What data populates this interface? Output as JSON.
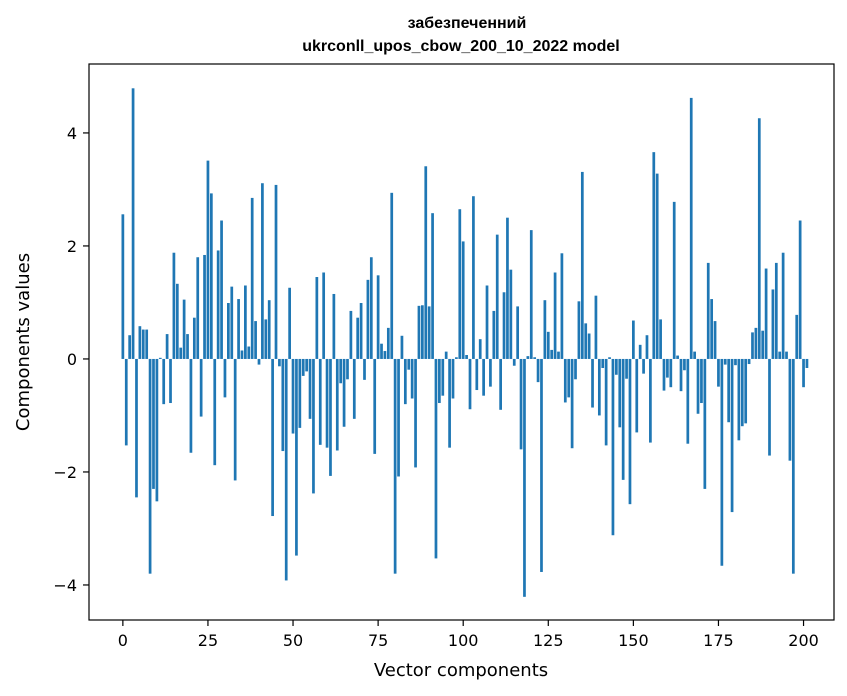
{
  "chart_data": {
    "type": "bar",
    "title_line1": "забезпеченний",
    "title_line2": "ukrconll_upos_cbow_200_10_2022 model",
    "xlabel": "Vector components",
    "ylabel": "Components values",
    "xlim": [
      -9.95,
      208.95
    ],
    "ylim": [
      -4.62,
      5.22
    ],
    "xticks": [
      0,
      25,
      50,
      75,
      100,
      125,
      150,
      175,
      200
    ],
    "yticks": [
      -4,
      -2,
      0,
      2,
      4
    ],
    "ytick_labels": [
      "−4",
      "−2",
      "0",
      "2",
      "4"
    ],
    "grid": false,
    "bar_color": "#1f77b4",
    "values": [
      2.56,
      -1.53,
      0.42,
      4.79,
      -2.45,
      0.58,
      0.52,
      0.52,
      -3.8,
      -2.3,
      -2.52,
      0.02,
      -0.8,
      0.44,
      -0.78,
      1.88,
      1.33,
      0.2,
      1.05,
      0.44,
      -1.66,
      0.73,
      1.8,
      -1.02,
      1.84,
      3.51,
      2.93,
      -1.88,
      1.92,
      2.45,
      -0.68,
      0.99,
      1.28,
      -2.15,
      1.06,
      0.15,
      1.3,
      0.22,
      2.85,
      0.67,
      -0.1,
      3.11,
      0.7,
      1.04,
      -2.78,
      3.08,
      -0.13,
      -1.63,
      -3.92,
      1.26,
      -1.32,
      -3.48,
      -1.22,
      -0.3,
      -0.22,
      -1.06,
      -2.38,
      1.45,
      -1.52,
      1.53,
      -1.57,
      -2.07,
      1.15,
      -1.62,
      -0.43,
      -1.2,
      -0.36,
      0.85,
      -1.06,
      0.73,
      0.99,
      -0.37,
      1.4,
      1.8,
      -1.68,
      1.48,
      0.27,
      0.14,
      0.55,
      2.94,
      -3.8,
      -2.08,
      0.41,
      -0.8,
      -0.19,
      -0.7,
      -1.92,
      0.94,
      0.95,
      3.41,
      0.93,
      2.58,
      -3.53,
      -0.78,
      -0.65,
      0.13,
      -1.57,
      -0.7,
      0.03,
      2.65,
      2.08,
      0.07,
      -0.89,
      2.88,
      -0.55,
      0.35,
      -0.65,
      1.3,
      -0.49,
      0.85,
      2.2,
      -0.9,
      1.18,
      2.5,
      1.58,
      -0.12,
      0.93,
      -1.6,
      -4.21,
      0.05,
      2.28,
      0.03,
      -0.41,
      -3.77,
      1.04,
      0.48,
      0.16,
      1.53,
      0.13,
      1.87,
      -0.77,
      -0.68,
      -1.58,
      -0.36,
      1.02,
      3.31,
      0.63,
      0.45,
      -0.86,
      1.12,
      -1.0,
      -0.16,
      -1.53,
      0.03,
      -3.12,
      -0.28,
      -1.21,
      -2.14,
      -0.35,
      -2.57,
      0.68,
      -1.3,
      0.25,
      -0.26,
      0.42,
      -1.48,
      3.66,
      3.28,
      0.7,
      -0.56,
      -0.33,
      -0.5,
      2.78,
      0.06,
      -0.57,
      -0.2,
      -1.5,
      4.62,
      0.13,
      -0.97,
      -0.78,
      -2.3,
      1.7,
      1.06,
      0.67,
      -0.49,
      -3.66,
      -0.1,
      -1.12,
      -2.71,
      -0.11,
      -1.44,
      -1.19,
      -1.14,
      -0.09,
      0.47,
      0.55,
      4.26,
      0.5,
      1.6,
      -1.71,
      1.23,
      1.7,
      0.13,
      1.88,
      0.13,
      -1.8,
      -3.8,
      0.78,
      2.45,
      -0.5,
      -0.16
    ]
  }
}
